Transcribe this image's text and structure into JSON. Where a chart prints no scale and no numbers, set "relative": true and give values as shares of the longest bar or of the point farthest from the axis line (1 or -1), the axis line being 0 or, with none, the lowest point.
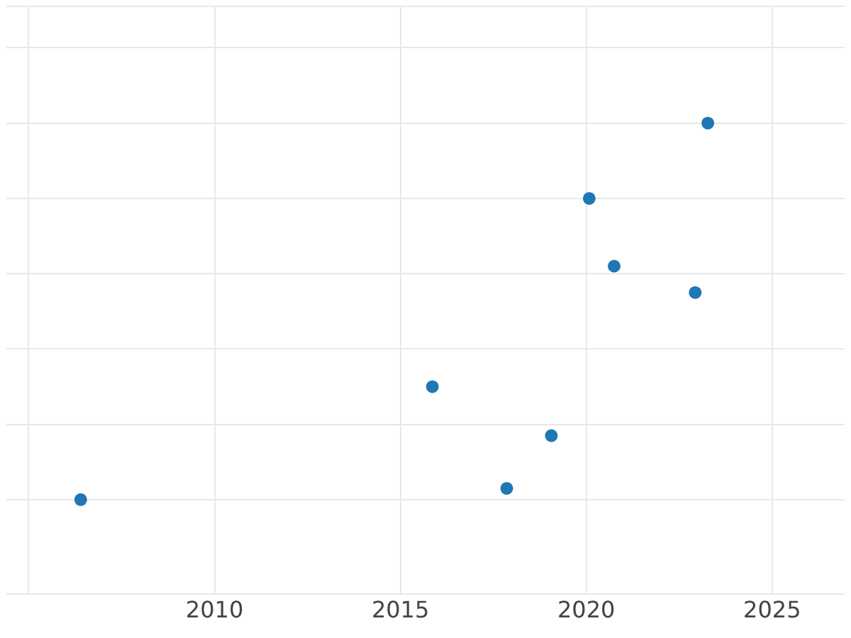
{
  "chart_data": {
    "type": "scatter",
    "relative": true,
    "x": [
      2006.4,
      2015.86,
      2017.86,
      2019.06,
      2020.08,
      2020.75,
      2022.93,
      2023.27
    ],
    "series": [
      {
        "color": "#1f77b4",
        "values": [
          0,
          0.3,
          0.03,
          0.17,
          0.8,
          0.62,
          0.55,
          1
        ]
      }
    ],
    "xlim": [
      2004.4,
      2026.95
    ],
    "xticks": [
      {
        "value": 2005,
        "label": null
      },
      2010,
      2015,
      2020,
      2025
    ],
    "tick_labels": "x",
    "grid": true,
    "marker": "circle"
  }
}
